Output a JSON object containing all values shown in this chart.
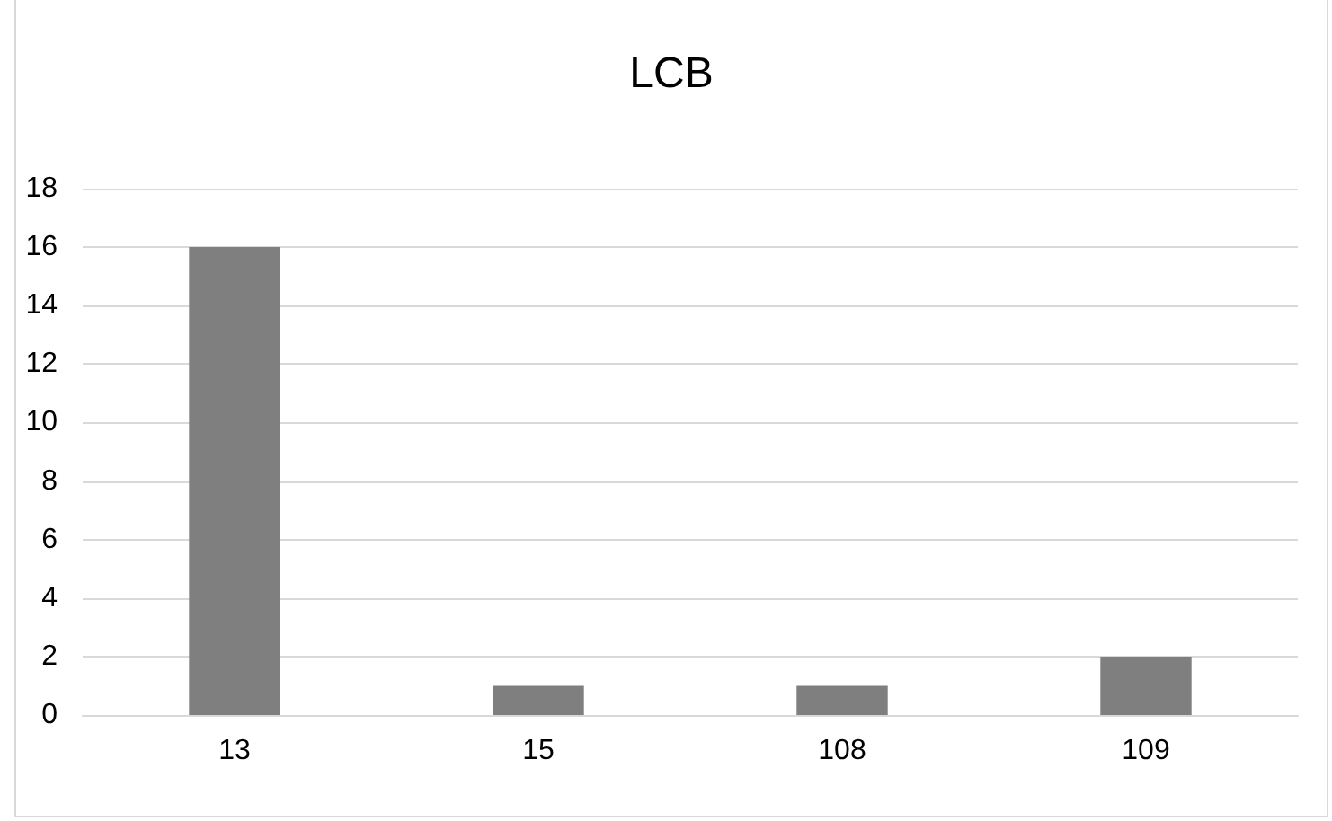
{
  "chart_data": {
    "type": "bar",
    "title": "LCB",
    "categories": [
      "13",
      "15",
      "108",
      "109"
    ],
    "values": [
      16,
      1,
      1,
      2
    ],
    "color": "#7f7f7f",
    "ylim": [
      0,
      18
    ],
    "yticks": [
      0,
      2,
      4,
      6,
      8,
      10,
      12,
      14,
      16,
      18
    ],
    "grid": "y"
  }
}
